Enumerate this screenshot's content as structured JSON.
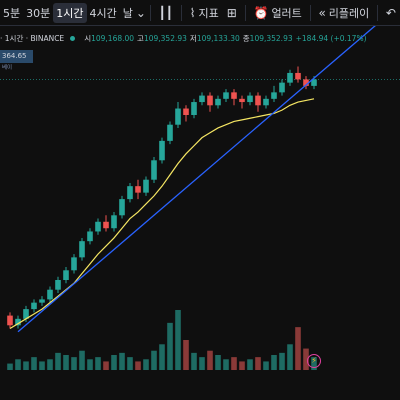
{
  "toolbar": {
    "timeframes": [
      "5분",
      "30분",
      "1시간",
      "4시간",
      "날"
    ],
    "active_timeframe": "1시간",
    "chart_type_icon": "candlestick-icon",
    "indicators_label": "지표",
    "alert_label": "얼러트",
    "replay_label": "리플레이",
    "undo_icon": "undo-icon"
  },
  "legend": {
    "symbol": "· 1시간 · BINANCE",
    "open_label": "시",
    "open": "109,168.00",
    "high_label": "고",
    "high": "109,352.93",
    "low_label": "저",
    "low": "109,133.30",
    "close_label": "종",
    "close": "109,352.93",
    "change": "+184.94 (+0.17%)"
  },
  "price_badge": {
    "value": "364.65",
    "sub": "베이"
  },
  "colors": {
    "up": "#26a69a",
    "down": "#ef5350",
    "ma": "#f5e663",
    "trend": "#2962ff",
    "bg": "#0f0f0f"
  },
  "chart_data": {
    "type": "candlestick",
    "series": [
      {
        "name": "",
        "ohlc": [
          [
            104,
            101,
            105,
            100
          ],
          [
            101,
            103,
            104,
            100
          ],
          [
            103,
            106,
            107,
            102
          ],
          [
            106,
            108,
            109,
            105
          ],
          [
            108,
            109,
            110,
            107
          ],
          [
            109,
            112,
            113,
            108
          ],
          [
            112,
            115,
            116,
            111
          ],
          [
            115,
            118,
            119,
            114
          ],
          [
            118,
            122,
            123,
            117
          ],
          [
            122,
            127,
            128,
            121
          ],
          [
            127,
            130,
            131,
            126
          ],
          [
            130,
            133,
            134,
            129
          ],
          [
            133,
            131,
            135,
            130
          ],
          [
            131,
            135,
            136,
            130
          ],
          [
            135,
            140,
            141,
            134
          ],
          [
            140,
            144,
            145,
            139
          ],
          [
            144,
            142,
            146,
            140
          ],
          [
            142,
            146,
            147,
            141
          ],
          [
            146,
            152,
            153,
            145
          ],
          [
            152,
            158,
            159,
            151
          ],
          [
            158,
            163,
            164,
            157
          ],
          [
            163,
            168,
            170,
            162
          ],
          [
            168,
            166,
            169,
            164
          ],
          [
            166,
            170,
            171,
            165
          ],
          [
            170,
            172,
            173,
            169
          ],
          [
            172,
            169,
            173,
            167
          ],
          [
            169,
            171,
            172,
            168
          ],
          [
            171,
            173,
            174,
            170
          ],
          [
            173,
            171,
            174,
            169
          ],
          [
            171,
            170,
            172,
            168
          ],
          [
            170,
            172,
            173,
            169
          ],
          [
            172,
            169,
            173,
            167
          ],
          [
            169,
            171,
            172,
            168
          ],
          [
            171,
            173,
            175,
            170
          ],
          [
            173,
            176,
            177,
            172
          ],
          [
            176,
            179,
            180,
            175
          ],
          [
            179,
            177,
            181,
            176
          ],
          [
            177,
            175,
            178,
            174
          ],
          [
            175,
            177,
            178,
            174
          ]
        ]
      }
    ],
    "ma": [
      100,
      101.5,
      103,
      104.5,
      106,
      108,
      110,
      112,
      114,
      117,
      120,
      123,
      125.5,
      128,
      131,
      134,
      136,
      138.5,
      141,
      144,
      147.5,
      151,
      154,
      156.5,
      159,
      160.5,
      162,
      163,
      164,
      164.5,
      165,
      165.5,
      166,
      166.5,
      167.5,
      169,
      170,
      170.5,
      171
    ],
    "trendline": [
      [
        0,
        99
      ],
      [
        38,
        178
      ]
    ],
    "volumes": [
      3,
      5,
      4,
      6,
      4,
      5,
      8,
      7,
      6,
      9,
      5,
      6,
      4,
      7,
      8,
      6,
      4,
      5,
      9,
      12,
      22,
      28,
      14,
      8,
      6,
      9,
      7,
      5,
      6,
      4,
      5,
      6,
      4,
      7,
      8,
      12,
      20,
      10,
      6
    ],
    "vol_up": [
      true,
      true,
      true,
      true,
      true,
      true,
      true,
      true,
      true,
      true,
      true,
      true,
      false,
      true,
      true,
      true,
      false,
      true,
      true,
      true,
      true,
      true,
      false,
      true,
      true,
      false,
      true,
      true,
      false,
      false,
      true,
      false,
      true,
      true,
      true,
      true,
      false,
      false,
      true
    ]
  }
}
